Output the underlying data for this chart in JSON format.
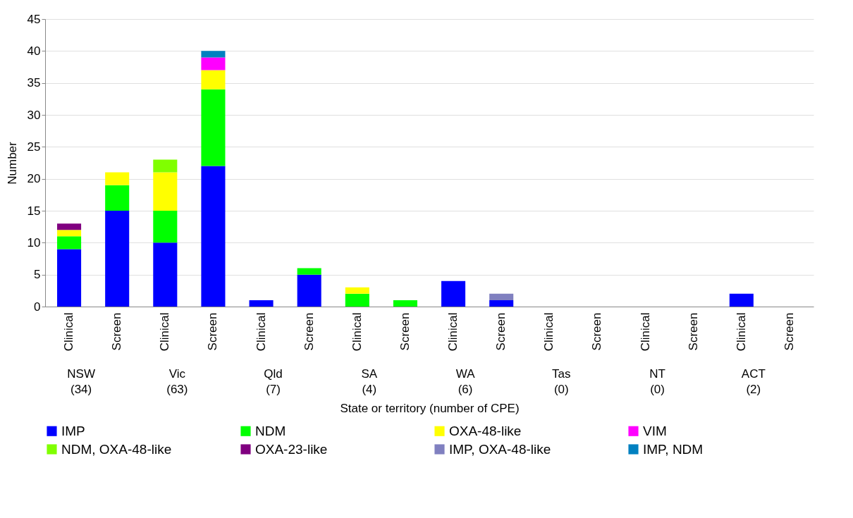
{
  "chart_data": {
    "type": "bar",
    "stacked": true,
    "xlabel": "State or territory (number of CPE)",
    "ylabel": "Number",
    "categories": [
      "Clinical",
      "Screen",
      "Clinical",
      "Screen",
      "Clinical",
      "Screen",
      "Clinical",
      "Screen",
      "Clinical",
      "Screen",
      "Clinical",
      "Screen",
      "Clinical",
      "Screen",
      "Clinical",
      "Screen"
    ],
    "annotations": [
      "NSW\n(34)",
      "Vic\n(63)",
      "Qld\n(7)",
      "SA\n(4)",
      "WA\n(6)",
      "Tas\n(0)",
      "NT\n(0)",
      "ACT\n(2)"
    ],
    "series": [
      {
        "name": "IMP",
        "color": "#0000ff",
        "values": [
          9,
          15,
          10,
          22,
          1,
          5,
          0,
          0,
          4,
          1,
          0,
          0,
          0,
          0,
          2,
          0
        ]
      },
      {
        "name": "NDM",
        "color": "#00ff00",
        "values": [
          2,
          4,
          5,
          12,
          0,
          1,
          2,
          1,
          0,
          0,
          0,
          0,
          0,
          0,
          0,
          0
        ]
      },
      {
        "name": "OXA-48-like",
        "color": "#ffff00",
        "values": [
          1,
          2,
          6,
          3,
          0,
          0,
          1,
          0,
          0,
          0,
          0,
          0,
          0,
          0,
          0,
          0
        ]
      },
      {
        "name": "VIM",
        "color": "#ff00ff",
        "values": [
          0,
          0,
          0,
          2,
          0,
          0,
          0,
          0,
          0,
          0,
          0,
          0,
          0,
          0,
          0,
          0
        ]
      },
      {
        "name": "NDM, OXA-48-like",
        "color": "#80ff00",
        "values": [
          0,
          0,
          2,
          0,
          0,
          0,
          0,
          0,
          0,
          0,
          0,
          0,
          0,
          0,
          0,
          0
        ]
      },
      {
        "name": "OXA-23-like",
        "color": "#800080",
        "values": [
          1,
          0,
          0,
          0,
          0,
          0,
          0,
          0,
          0,
          0,
          0,
          0,
          0,
          0,
          0,
          0
        ]
      },
      {
        "name": "IMP, OXA-48-like",
        "color": "#8080c0",
        "values": [
          0,
          0,
          0,
          0,
          0,
          0,
          0,
          0,
          0,
          1,
          0,
          0,
          0,
          0,
          0,
          0
        ]
      },
      {
        "name": "IMP, NDM",
        "color": "#0080c0",
        "values": [
          0,
          0,
          0,
          1,
          0,
          0,
          0,
          0,
          0,
          0,
          0,
          0,
          0,
          0,
          0,
          0
        ]
      }
    ],
    "ylim": [
      0,
      45
    ],
    "yticks": [
      0,
      5,
      10,
      15,
      20,
      25,
      30,
      35,
      40,
      45
    ],
    "grid": "y",
    "legend": "bottom"
  }
}
